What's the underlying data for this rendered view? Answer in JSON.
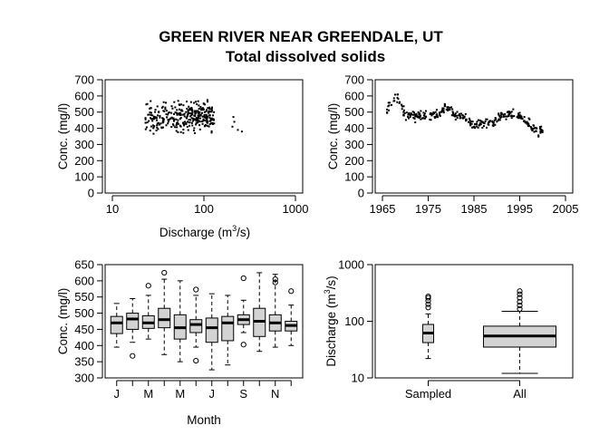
{
  "title": "GREEN RIVER NEAR GREENDALE, UT",
  "subtitle": "Total dissolved solids",
  "chart_data": [
    {
      "type": "scatter",
      "ylabel": "Conc. (mg/l)",
      "xlabel_text": "Discharge (m",
      "xlabel_sup": "3",
      "xlabel_tail": "/s)",
      "x_scale": "log",
      "xlim": [
        10,
        1000
      ],
      "ylim": [
        0,
        700
      ],
      "x_ticks": [
        "10",
        "100",
        "1000"
      ],
      "y_ticks": [
        "0",
        "100",
        "200",
        "300",
        "400",
        "500",
        "600",
        "700"
      ],
      "seed": 7,
      "n_points": 330,
      "x_range_main": [
        23,
        130
      ],
      "y_range_main": [
        340,
        640
      ],
      "points_extra": [
        [
          210,
          470
        ],
        [
          215,
          440
        ],
        [
          260,
          380
        ],
        [
          235,
          390
        ],
        [
          205,
          410
        ]
      ]
    },
    {
      "type": "scatter",
      "ylabel": "Conc. (mg/l)",
      "xlim": [
        1965,
        2005
      ],
      "ylim": [
        0,
        700
      ],
      "x_ticks": [
        "1965",
        "1975",
        "1985",
        "1995",
        "2005"
      ],
      "y_ticks": [
        "0",
        "100",
        "200",
        "300",
        "400",
        "500",
        "600",
        "700"
      ],
      "trend": [
        [
          1966,
          520
        ],
        [
          1968,
          600
        ],
        [
          1970,
          490
        ],
        [
          1972,
          470
        ],
        [
          1975,
          480
        ],
        [
          1977,
          480
        ],
        [
          1979,
          530
        ],
        [
          1981,
          480
        ],
        [
          1983,
          470
        ],
        [
          1985,
          420
        ],
        [
          1987,
          430
        ],
        [
          1989,
          440
        ],
        [
          1991,
          480
        ],
        [
          1993,
          490
        ],
        [
          1995,
          470
        ],
        [
          1997,
          430
        ],
        [
          1999,
          380
        ],
        [
          2000,
          385
        ]
      ],
      "n_points": 330,
      "seed": 11
    },
    {
      "type": "box",
      "ylabel": "Conc. (mg/l)",
      "xlabel": "Month",
      "ylim": [
        300,
        650
      ],
      "y_ticks": [
        "300",
        "350",
        "400",
        "450",
        "500",
        "550",
        "600",
        "650"
      ],
      "x_ticks": [
        "J",
        "M",
        "M",
        "J",
        "S",
        "N"
      ],
      "boxes": [
        {
          "min": 395,
          "q1": 437,
          "median": 470,
          "q3": 490,
          "max": 530,
          "outliers": []
        },
        {
          "min": 410,
          "q1": 450,
          "median": 482,
          "q3": 500,
          "max": 545,
          "outliers": [
            368
          ]
        },
        {
          "min": 420,
          "q1": 453,
          "median": 470,
          "q3": 492,
          "max": 555,
          "outliers": [
            585
          ]
        },
        {
          "min": 372,
          "q1": 455,
          "median": 480,
          "q3": 515,
          "max": 605,
          "outliers": [
            625
          ]
        },
        {
          "min": 350,
          "q1": 420,
          "median": 455,
          "q3": 495,
          "max": 600,
          "outliers": []
        },
        {
          "min": 395,
          "q1": 440,
          "median": 465,
          "q3": 480,
          "max": 555,
          "outliers": [
            353,
            573
          ]
        },
        {
          "min": 325,
          "q1": 410,
          "median": 455,
          "q3": 485,
          "max": 560,
          "outliers": []
        },
        {
          "min": 340,
          "q1": 415,
          "median": 470,
          "q3": 490,
          "max": 555,
          "outliers": []
        },
        {
          "min": 440,
          "q1": 465,
          "median": 480,
          "q3": 495,
          "max": 540,
          "outliers": [
            403,
            608
          ]
        },
        {
          "min": 382,
          "q1": 428,
          "median": 475,
          "q3": 515,
          "max": 625,
          "outliers": []
        },
        {
          "min": 395,
          "q1": 445,
          "median": 470,
          "q3": 495,
          "max": 620,
          "outliers": [
            595,
            605
          ]
        },
        {
          "min": 400,
          "q1": 445,
          "median": 462,
          "q3": 475,
          "max": 525,
          "outliers": [
            568
          ]
        }
      ]
    },
    {
      "type": "box",
      "ylabel_text": "Discharge (m",
      "ylabel_sup": "3",
      "ylabel_tail": "/s)",
      "y_scale": "log",
      "ylim": [
        10,
        1000
      ],
      "y_ticks": [
        "10",
        "100",
        "1000"
      ],
      "categories": [
        "Sampled",
        "All"
      ],
      "boxes": [
        {
          "min": 22,
          "q1": 42,
          "median": 62,
          "q3": 88,
          "max": 135,
          "outliers": [
            175,
            200,
            230,
            260,
            275
          ]
        },
        {
          "min": 12,
          "q1": 35,
          "median": 55,
          "q3": 82,
          "max": 150,
          "outliers": [
            165,
            190,
            220,
            260,
            300,
            340
          ]
        }
      ]
    }
  ]
}
